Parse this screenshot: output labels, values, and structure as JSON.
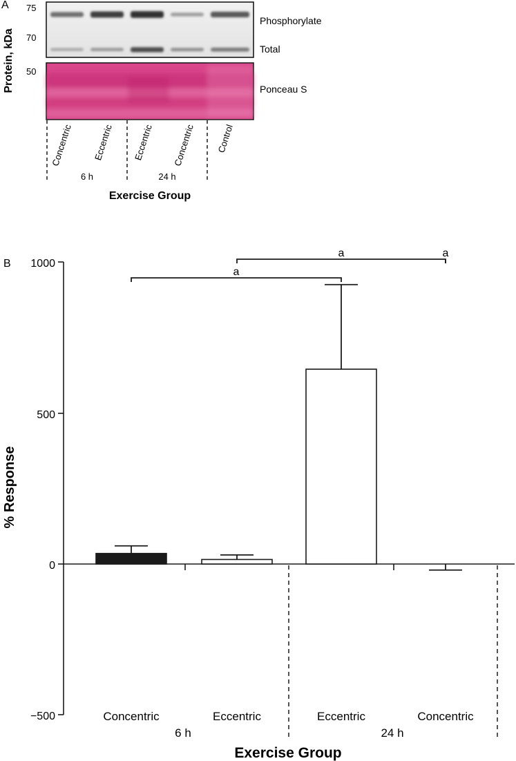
{
  "panel_a": {
    "letter": "A",
    "y_axis_label": "Protein, kDa",
    "mw_markers": [
      "75",
      "70",
      "50"
    ],
    "band_labels": [
      "Phosphorylate",
      "Total",
      "Ponceau S"
    ],
    "lanes": [
      "Concentric",
      "Eccentric",
      "Eccentric",
      "Concentric",
      "Control"
    ],
    "time_groups": [
      "6 h",
      "24 h"
    ],
    "x_axis_label": "Exercise Group",
    "band_intensity": {
      "phosphorylated": [
        0.55,
        0.85,
        0.95,
        0.25,
        0.7
      ],
      "total": [
        0.25,
        0.35,
        0.85,
        0.4,
        0.55
      ]
    },
    "colors": {
      "ponceau": "#d9468a",
      "blot_bg": "#e9e9e9"
    }
  },
  "chart_data": {
    "type": "bar",
    "panel_letter": "B",
    "categories": [
      "Concentric",
      "Eccentric",
      "Eccentric",
      "Concentric"
    ],
    "time_groups": [
      "6 h",
      "24 h"
    ],
    "values": [
      35,
      15,
      645,
      0
    ],
    "error_up": [
      60,
      30,
      925,
      0
    ],
    "error_down": [
      0,
      0,
      0,
      -20
    ],
    "bar_fill": [
      "#1a1a1a",
      "#ffffff",
      "#ffffff",
      "#ffffff"
    ],
    "ylabel": "% Response",
    "xlabel": "Exercise Group",
    "ylim": [
      -500,
      1000
    ],
    "yticks": [
      "1000",
      "500",
      "0",
      "−500"
    ],
    "significance": [
      {
        "from": 1,
        "to": 3,
        "label": "a"
      },
      {
        "from": 3,
        "to": 4,
        "label": "a"
      },
      {
        "from": 0,
        "to": 2,
        "label": "a"
      }
    ]
  }
}
